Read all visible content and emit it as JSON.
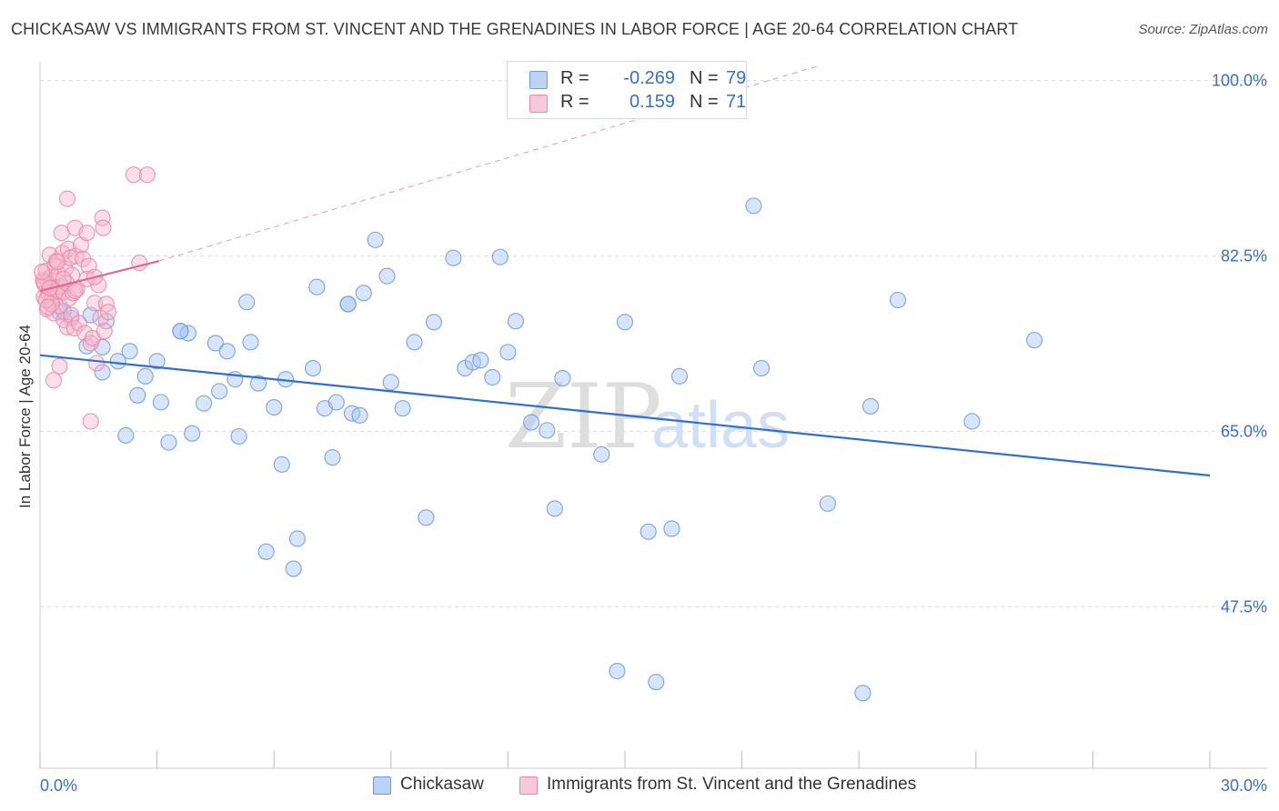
{
  "title": "CHICKASAW VS IMMIGRANTS FROM ST. VINCENT AND THE GRENADINES IN LABOR FORCE | AGE 20-64 CORRELATION CHART",
  "source": "Source: ZipAtlas.com",
  "watermark": {
    "zip": "ZIP",
    "atlas": "atlas"
  },
  "legend_top": [
    {
      "r_label": "R =",
      "r_value": "-0.269",
      "n_label": "N =",
      "n_value": "79"
    },
    {
      "r_label": "R =",
      "r_value": "0.159",
      "n_label": "N =",
      "n_value": "71"
    }
  ],
  "legend_bottom": [
    {
      "label": "Chickasaw"
    },
    {
      "label": "Immigrants from St. Vincent and the Grenadines"
    }
  ],
  "colors": {
    "blue_fill": "#a9c6f0",
    "blue_stroke": "#6f9bd8",
    "blue_line": "#2f6fce",
    "pink_fill": "#f5b8cc",
    "pink_stroke": "#ea8aa9",
    "pink_line": "#e06892",
    "grid": "#dcdcdc",
    "axis_text": "#3b6fc4",
    "watermark_zip": "#dedede",
    "watermark_atlas": "#cfdff5"
  },
  "chart_data": {
    "type": "scatter",
    "title": "CHICKASAW VS IMMIGRANTS FROM ST. VINCENT AND THE GRENADINES IN LABOR FORCE | AGE 20-64 CORRELATION CHART",
    "xlabel": "",
    "ylabel": "In Labor Force | Age 20-64",
    "xlim": [
      0,
      30
    ],
    "ylim": [
      31.4,
      101.5
    ],
    "x_tick_labels": [
      "0.0%",
      "30.0%"
    ],
    "y_ticks": [
      47.5,
      65.0,
      82.5,
      100.0
    ],
    "y_tick_labels": [
      "47.5%",
      "65.0%",
      "82.5%",
      "100.0%"
    ],
    "grid": true,
    "series": [
      {
        "name": "Chickasaw",
        "color": "#a9c6f0",
        "trend": {
          "x": [
            0,
            30
          ],
          "y": [
            72.6,
            60.6
          ],
          "style": "solid"
        },
        "points": [
          [
            0.5,
            76.9
          ],
          [
            0.8,
            76.3
          ],
          [
            1.3,
            76.6
          ],
          [
            1.7,
            76.0
          ],
          [
            1.2,
            73.5
          ],
          [
            1.6,
            73.4
          ],
          [
            2.0,
            72.0
          ],
          [
            1.6,
            70.9
          ],
          [
            2.3,
            73.0
          ],
          [
            2.7,
            70.5
          ],
          [
            3.0,
            72.0
          ],
          [
            2.5,
            68.6
          ],
          [
            3.1,
            67.9
          ],
          [
            2.2,
            64.6
          ],
          [
            3.3,
            63.9
          ],
          [
            3.6,
            75.0
          ],
          [
            3.8,
            74.8
          ],
          [
            4.2,
            67.8
          ],
          [
            3.9,
            64.8
          ],
          [
            4.5,
            73.8
          ],
          [
            4.6,
            69.0
          ],
          [
            4.8,
            73.0
          ],
          [
            5.0,
            70.2
          ],
          [
            5.1,
            64.5
          ],
          [
            5.3,
            77.9
          ],
          [
            5.4,
            73.9
          ],
          [
            5.6,
            69.8
          ],
          [
            6.0,
            67.4
          ],
          [
            6.2,
            61.7
          ],
          [
            6.3,
            70.2
          ],
          [
            5.8,
            53.0
          ],
          [
            6.6,
            54.3
          ],
          [
            6.5,
            51.3
          ],
          [
            7.0,
            71.3
          ],
          [
            7.1,
            79.4
          ],
          [
            7.3,
            67.3
          ],
          [
            7.5,
            62.4
          ],
          [
            7.6,
            67.9
          ],
          [
            7.9,
            77.7
          ],
          [
            8.0,
            66.8
          ],
          [
            8.2,
            66.6
          ],
          [
            8.3,
            78.8
          ],
          [
            8.6,
            84.1
          ],
          [
            8.9,
            80.5
          ],
          [
            9.0,
            69.9
          ],
          [
            9.3,
            67.3
          ],
          [
            9.6,
            73.9
          ],
          [
            9.9,
            56.4
          ],
          [
            10.1,
            75.9
          ],
          [
            10.6,
            82.3
          ],
          [
            10.9,
            71.3
          ],
          [
            11.1,
            71.9
          ],
          [
            11.3,
            72.1
          ],
          [
            11.6,
            70.4
          ],
          [
            11.8,
            82.4
          ],
          [
            12.0,
            72.9
          ],
          [
            12.2,
            76.0
          ],
          [
            12.6,
            65.9
          ],
          [
            13.0,
            65.1
          ],
          [
            13.2,
            57.3
          ],
          [
            13.4,
            70.3
          ],
          [
            14.4,
            62.7
          ],
          [
            14.8,
            41.1
          ],
          [
            15.0,
            75.9
          ],
          [
            15.6,
            55.0
          ],
          [
            15.8,
            40.0
          ],
          [
            16.2,
            55.3
          ],
          [
            16.4,
            70.5
          ],
          [
            18.3,
            87.5
          ],
          [
            18.5,
            71.3
          ],
          [
            20.2,
            57.8
          ],
          [
            21.1,
            38.9
          ],
          [
            21.3,
            67.5
          ],
          [
            22.0,
            78.1
          ],
          [
            23.9,
            66.0
          ],
          [
            25.5,
            74.1
          ],
          [
            3.6,
            75.0
          ],
          [
            7.9,
            77.7
          ],
          [
            0.6,
            77.0
          ]
        ]
      },
      {
        "name": "Immigrants from St. Vincent and the Grenadines",
        "color": "#f5b8cc",
        "trend": {
          "x": [
            0,
            3.05
          ],
          "y": [
            79.0,
            82.0
          ],
          "style": "solid",
          "extended_to": [
            20.0,
            101.5
          ],
          "extended_style": "dashed"
        },
        "points": [
          [
            0.08,
            80.1
          ],
          [
            0.1,
            78.4
          ],
          [
            0.12,
            79.6
          ],
          [
            0.15,
            81.0
          ],
          [
            0.18,
            77.2
          ],
          [
            0.2,
            79.9
          ],
          [
            0.22,
            78.7
          ],
          [
            0.25,
            82.6
          ],
          [
            0.27,
            80.4
          ],
          [
            0.3,
            78.1
          ],
          [
            0.32,
            79.3
          ],
          [
            0.35,
            76.8
          ],
          [
            0.38,
            81.5
          ],
          [
            0.4,
            79.0
          ],
          [
            0.42,
            82.0
          ],
          [
            0.45,
            78.6
          ],
          [
            0.48,
            80.7
          ],
          [
            0.5,
            77.5
          ],
          [
            0.52,
            79.4
          ],
          [
            0.55,
            84.8
          ],
          [
            0.58,
            82.8
          ],
          [
            0.6,
            78.9
          ],
          [
            0.62,
            76.1
          ],
          [
            0.65,
            81.2
          ],
          [
            0.68,
            79.8
          ],
          [
            0.7,
            75.4
          ],
          [
            0.72,
            83.2
          ],
          [
            0.75,
            78.3
          ],
          [
            0.78,
            82.3
          ],
          [
            0.8,
            76.6
          ],
          [
            0.82,
            80.6
          ],
          [
            0.85,
            78.8
          ],
          [
            0.88,
            75.3
          ],
          [
            0.9,
            85.3
          ],
          [
            0.92,
            82.5
          ],
          [
            0.95,
            79.2
          ],
          [
            1.0,
            75.8
          ],
          [
            1.05,
            83.6
          ],
          [
            1.1,
            82.2
          ],
          [
            1.15,
            74.8
          ],
          [
            1.2,
            84.8
          ],
          [
            1.25,
            81.5
          ],
          [
            1.3,
            73.8
          ],
          [
            1.35,
            74.3
          ],
          [
            1.4,
            77.8
          ],
          [
            1.45,
            71.8
          ],
          [
            1.5,
            79.6
          ],
          [
            1.55,
            76.3
          ],
          [
            1.6,
            86.3
          ],
          [
            1.62,
            85.3
          ],
          [
            1.65,
            75.0
          ],
          [
            1.7,
            77.7
          ],
          [
            1.75,
            76.9
          ],
          [
            0.5,
            71.5
          ],
          [
            0.35,
            70.1
          ],
          [
            1.3,
            66.0
          ],
          [
            0.7,
            88.2
          ],
          [
            2.4,
            90.6
          ],
          [
            2.75,
            90.6
          ],
          [
            2.55,
            81.8
          ],
          [
            0.3,
            77.7
          ],
          [
            0.45,
            81.9
          ],
          [
            0.6,
            80.2
          ],
          [
            0.1,
            79.9
          ],
          [
            0.15,
            78.1
          ],
          [
            0.2,
            77.4
          ],
          [
            0.9,
            79.0
          ],
          [
            1.2,
            80.2
          ],
          [
            1.4,
            80.4
          ],
          [
            0.05,
            80.9
          ],
          [
            0.25,
            79.3
          ]
        ]
      }
    ]
  }
}
